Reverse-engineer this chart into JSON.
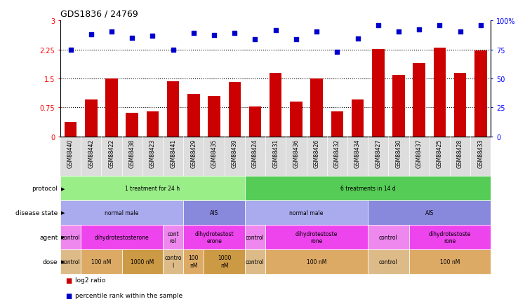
{
  "title": "GDS1836 / 24769",
  "samples": [
    "GSM88440",
    "GSM88442",
    "GSM88422",
    "GSM88438",
    "GSM88423",
    "GSM88441",
    "GSM88429",
    "GSM88435",
    "GSM88439",
    "GSM88424",
    "GSM88431",
    "GSM88436",
    "GSM88426",
    "GSM88432",
    "GSM88434",
    "GSM88427",
    "GSM88430",
    "GSM88437",
    "GSM88425",
    "GSM88428",
    "GSM88433"
  ],
  "log2_ratio": [
    0.38,
    0.95,
    1.5,
    0.62,
    0.65,
    1.43,
    1.1,
    1.05,
    1.42,
    0.78,
    1.65,
    0.9,
    1.5,
    0.64,
    0.95,
    2.27,
    1.6,
    1.9,
    2.3,
    1.65,
    2.22
  ],
  "percentile": [
    75.0,
    88.3,
    90.7,
    85.0,
    86.7,
    75.0,
    89.3,
    87.3,
    89.3,
    84.0,
    91.7,
    84.0,
    90.7,
    73.0,
    84.3,
    96.0,
    90.7,
    92.7,
    96.0,
    90.7,
    96.0
  ],
  "bar_color": "#cc0000",
  "dot_color": "#0000cc",
  "ylim_left": [
    0,
    3
  ],
  "ylim_right": [
    0,
    100
  ],
  "yticks_left": [
    0,
    0.75,
    1.5,
    2.25,
    3
  ],
  "ytick_labels_left": [
    "0",
    "0.75",
    "1.5",
    "2.25",
    "3"
  ],
  "yticks_right": [
    0,
    25,
    50,
    75,
    100
  ],
  "ytick_labels_right": [
    "0",
    "25",
    "50",
    "75",
    "100%"
  ],
  "hlines": [
    0.75,
    1.5,
    2.25
  ],
  "protocol_row": {
    "label": "protocol",
    "groups": [
      {
        "text": "1 treatment for 24 h",
        "start": 0,
        "end": 9,
        "color": "#99ee88"
      },
      {
        "text": "6 treatments in 14 d",
        "start": 9,
        "end": 21,
        "color": "#55cc55"
      }
    ]
  },
  "disease_state_row": {
    "label": "disease state",
    "groups": [
      {
        "text": "normal male",
        "start": 0,
        "end": 6,
        "color": "#aaaaee"
      },
      {
        "text": "AIS",
        "start": 6,
        "end": 9,
        "color": "#8888dd"
      },
      {
        "text": "normal male",
        "start": 9,
        "end": 15,
        "color": "#aaaaee"
      },
      {
        "text": "AIS",
        "start": 15,
        "end": 21,
        "color": "#8888dd"
      }
    ]
  },
  "agent_row": {
    "label": "agent",
    "groups": [
      {
        "text": "control",
        "start": 0,
        "end": 1,
        "color": "#ee88ee"
      },
      {
        "text": "dihydrotestosterone",
        "start": 1,
        "end": 5,
        "color": "#ee44ee"
      },
      {
        "text": "cont\nrol",
        "start": 5,
        "end": 6,
        "color": "#ee88ee"
      },
      {
        "text": "dihydrotestost\nerone",
        "start": 6,
        "end": 9,
        "color": "#ee44ee"
      },
      {
        "text": "control",
        "start": 9,
        "end": 10,
        "color": "#ee88ee"
      },
      {
        "text": "dihydrotestoste\nrone",
        "start": 10,
        "end": 15,
        "color": "#ee44ee"
      },
      {
        "text": "control",
        "start": 15,
        "end": 17,
        "color": "#ee88ee"
      },
      {
        "text": "dihydrotestoste\nrone",
        "start": 17,
        "end": 21,
        "color": "#ee44ee"
      }
    ]
  },
  "dose_row": {
    "label": "dose",
    "groups": [
      {
        "text": "control",
        "start": 0,
        "end": 1,
        "color": "#ddbb88"
      },
      {
        "text": "100 nM",
        "start": 1,
        "end": 3,
        "color": "#ddaa66"
      },
      {
        "text": "1000 nM",
        "start": 3,
        "end": 5,
        "color": "#cc9944"
      },
      {
        "text": "contro\nl",
        "start": 5,
        "end": 6,
        "color": "#ddbb88"
      },
      {
        "text": "100\nnM",
        "start": 6,
        "end": 7,
        "color": "#ddaa66"
      },
      {
        "text": "1000\nnM",
        "start": 7,
        "end": 9,
        "color": "#cc9944"
      },
      {
        "text": "control",
        "start": 9,
        "end": 10,
        "color": "#ddbb88"
      },
      {
        "text": "100 nM",
        "start": 10,
        "end": 15,
        "color": "#ddaa66"
      },
      {
        "text": "control",
        "start": 15,
        "end": 17,
        "color": "#ddbb88"
      },
      {
        "text": "100 nM",
        "start": 17,
        "end": 21,
        "color": "#ddaa66"
      }
    ]
  },
  "legend_bar_color": "#cc0000",
  "legend_dot_color": "#0000cc",
  "legend_bar_label": "log2 ratio",
  "legend_dot_label": "percentile rank within the sample"
}
